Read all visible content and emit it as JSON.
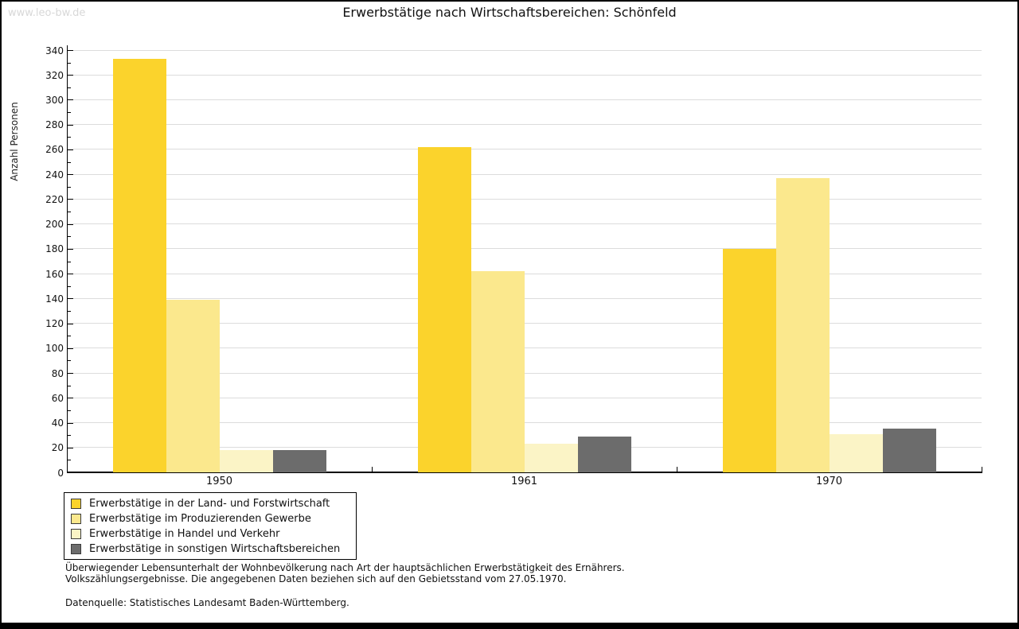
{
  "watermark": "www.leo-bw.de",
  "header": {
    "title": "Erwerbstätige nach Wirtschaftsbereichen: Schönfeld"
  },
  "chart_data": {
    "type": "bar",
    "title": "Erwerbstätige nach Wirtschaftsbereichen: Schönfeld",
    "ylabel": "Anzahl Personen",
    "xlabel": "",
    "categories": [
      "1950",
      "1961",
      "1970"
    ],
    "series": [
      {
        "name": "Erwerbstätige in der Land- und Forstwirtschaft",
        "color": "#fbd32c",
        "values": [
          333,
          262,
          180
        ]
      },
      {
        "name": "Erwerbstätige im Produzierenden Gewerbe",
        "color": "#fbe88d",
        "values": [
          139,
          162,
          237
        ]
      },
      {
        "name": "Erwerbstätige in Handel und Verkehr",
        "color": "#fbf4c6",
        "values": [
          18,
          23,
          31
        ]
      },
      {
        "name": "Erwerbstätige in sonstigen Wirtschaftsbereichen",
        "color": "#6c6c6c",
        "values": [
          18,
          29,
          35
        ]
      }
    ],
    "ylim": [
      0,
      340
    ],
    "ytick_major_step": 20,
    "ytick_minor_step": 10,
    "grid": true,
    "legend_position": "bottom-left"
  },
  "footnotes": {
    "line1": "Überwiegender Lebensunterhalt der Wohnbevölkerung nach Art der hauptsächlichen Erwerbstätigkeit des Ernährers.",
    "line2": "Volkszählungsergebnisse. Die angegebenen Daten beziehen sich auf den Gebietsstand vom 27.05.1970.",
    "source": "Datenquelle: Statistisches Landesamt Baden-Württemberg."
  },
  "colors": {
    "axis": "#000000",
    "grid": "#dcdcdc",
    "watermark": "#d8d8d8"
  }
}
